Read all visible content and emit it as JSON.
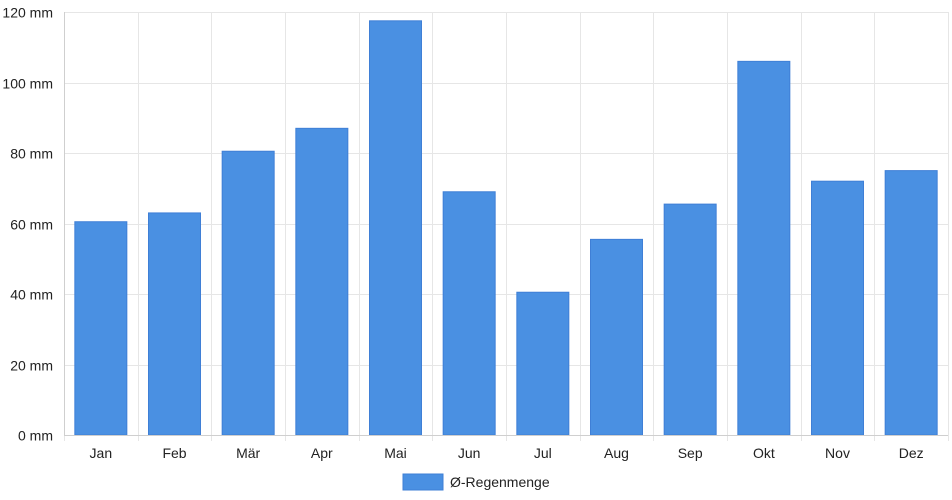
{
  "chart_data": {
    "type": "bar",
    "categories": [
      "Jan",
      "Feb",
      "Mär",
      "Apr",
      "Mai",
      "Jun",
      "Jul",
      "Aug",
      "Sep",
      "Okt",
      "Nov",
      "Dez"
    ],
    "series": [
      {
        "name": "Ø-Regenmenge",
        "values": [
          60.5,
          63,
          80.5,
          87,
          117.5,
          69,
          40.5,
          55.5,
          65.5,
          106,
          72,
          75
        ],
        "color": "#4a90e2"
      }
    ],
    "yunit": "mm",
    "ylim": [
      0,
      120
    ],
    "yticks": [
      0,
      20,
      40,
      60,
      80,
      100,
      120
    ],
    "grid": true,
    "legend": "bottom"
  }
}
